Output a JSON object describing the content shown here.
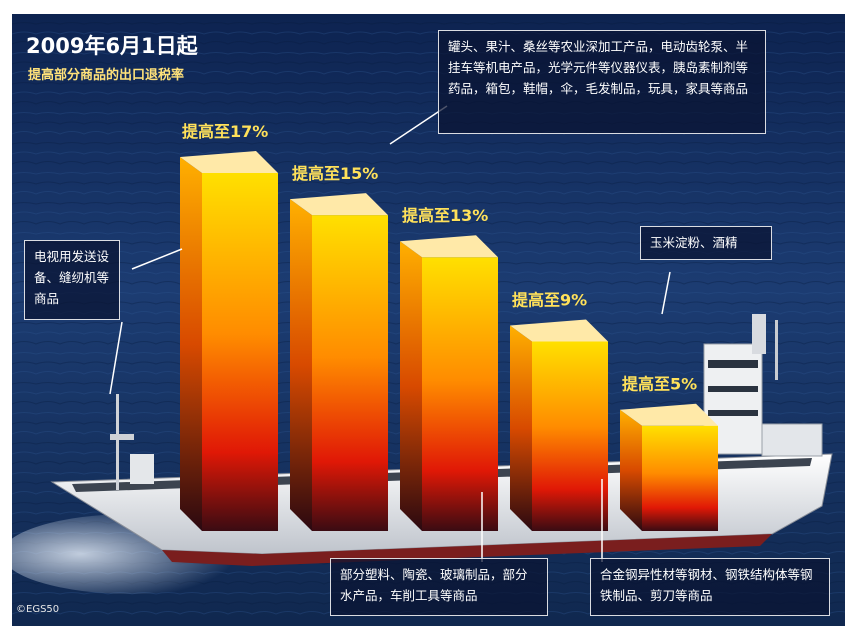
{
  "header": {
    "title": "2009年6月1日起",
    "subtitle": "提高部分商品的出口退税率"
  },
  "credit": "©EGS50",
  "notes": {
    "n17": "罐头、果汁、桑丝等农业深加工产品，电动齿轮泵、半挂车等机电产品，光学元件等仪器仪表，胰岛素制剂等药品，箱包，鞋帽，伞，毛发制品，玩具，家具等商品",
    "n15": "电视用发送设备、缝纫机等商品",
    "n13": "部分塑料、陶瓷、玻璃制品，部分水产品，车削工具等商品",
    "n9": "合金钢异性材等钢材、钢铁结构体等钢铁制品、剪刀等商品",
    "n5": "玉米淀粉、酒精"
  },
  "colors": {
    "sea": "#17305e",
    "bar_top": "#ffd800",
    "bar_mid": "#ff7a00",
    "bar_low": "#d81208",
    "hull": "#f2f2f2"
  },
  "chart_data": {
    "type": "bar",
    "title": "2009年6月1日起",
    "subtitle": "提高部分商品的出口退税率",
    "categories": [
      "提高至17%",
      "提高至15%",
      "提高至13%",
      "提高至9%",
      "提高至5%"
    ],
    "values": [
      17,
      15,
      13,
      9,
      5
    ],
    "unit": "%",
    "ylim": [
      0,
      17
    ],
    "grid": false,
    "legend": "none"
  }
}
